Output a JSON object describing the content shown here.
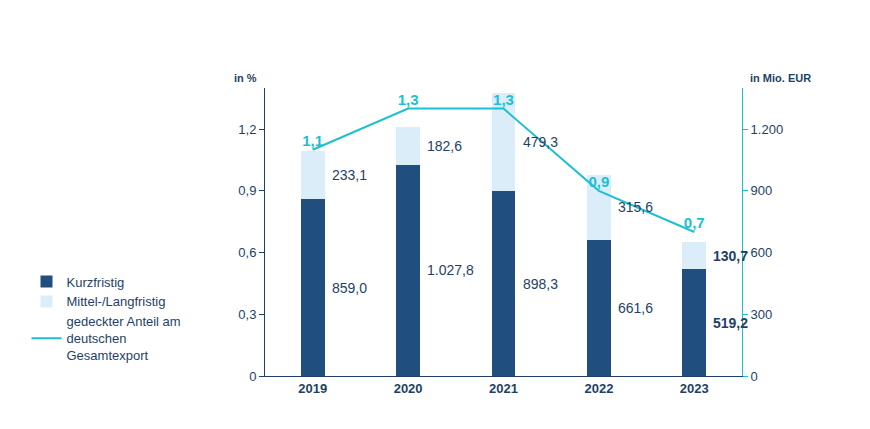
{
  "chart_data": {
    "type": "bar",
    "stacked": true,
    "data_labels": true,
    "grid": false,
    "legend": "left",
    "categories": [
      "2019",
      "2020",
      "2021",
      "2022",
      "2023"
    ],
    "y_title": "in %",
    "y2_title": "in Mio. EUR",
    "ylim": [
      0,
      1.4
    ],
    "yticks": [
      0,
      {
        "value": 0.3,
        "label": "0,3"
      },
      {
        "value": 0.6,
        "label": "0,6"
      },
      {
        "value": 0.9,
        "label": "0,9"
      },
      {
        "value": 1.2,
        "label": "1,2"
      }
    ],
    "y2lim": [
      0,
      1400
    ],
    "y2ticks": [
      0,
      300,
      600,
      900,
      {
        "value": 1200,
        "label": "1.200"
      }
    ],
    "series": [
      {
        "name": "Kurzfristig",
        "type": "bar",
        "axis": "y2",
        "color": "#1f4e7f",
        "values": [
          859.0,
          1027.8,
          898.3,
          661.6,
          519.2
        ],
        "value_labels": [
          "859,0",
          "1.027,8",
          "898,3",
          "661,6",
          "519,2"
        ]
      },
      {
        "name": "Mittel-/Langfristig",
        "type": "bar",
        "axis": "y2",
        "color": "#dcedfa",
        "values": [
          233.1,
          182.6,
          479.3,
          315.6,
          130.7
        ],
        "value_labels": [
          "233,1",
          "182,6",
          "479,3",
          "315,6",
          "130,7"
        ]
      },
      {
        "name": "gedeckter Anteil am deutschen Gesamtexport",
        "type": "line",
        "axis": "y",
        "color": "#1dbfd3",
        "values": [
          1.1,
          1.3,
          1.3,
          0.9,
          0.7
        ],
        "value_labels": [
          "1,1",
          "1,3",
          "1,3",
          "0,9",
          "0,7"
        ]
      }
    ]
  }
}
